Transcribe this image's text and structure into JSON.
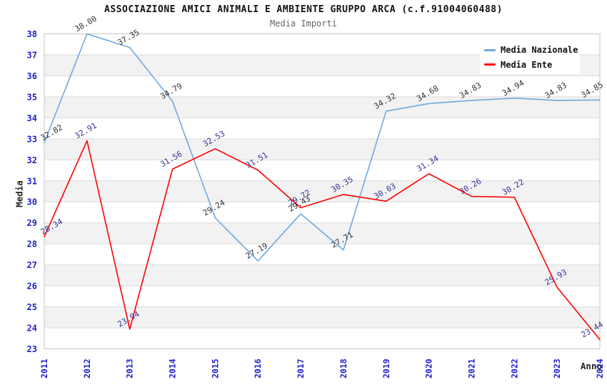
{
  "page": {
    "background": "#ffffff"
  },
  "chart_data": {
    "type": "line",
    "title": "ASSOCIAZIONE AMICI ANIMALI E AMBIENTE GRUPPO ARCA (c.f.91004060488)",
    "subtitle": "Media Importi",
    "xlabel": "Anno",
    "ylabel": "Media",
    "categories": [
      "2011",
      "2012",
      "2013",
      "2014",
      "2015",
      "2016",
      "2017",
      "2018",
      "2019",
      "2020",
      "2021",
      "2022",
      "2023",
      "2024"
    ],
    "series": [
      {
        "name": "Media Nazionale",
        "color": "#6FA8E0",
        "label_color": "#333333",
        "values": [
          32.82,
          38.0,
          37.35,
          34.79,
          29.24,
          27.19,
          29.43,
          27.71,
          34.32,
          34.68,
          34.83,
          34.94,
          34.83,
          34.85
        ]
      },
      {
        "name": "Media Ente",
        "color": "#FF0000",
        "label_color": "#333399",
        "values": [
          28.34,
          32.91,
          23.94,
          31.56,
          32.53,
          31.51,
          29.72,
          30.35,
          30.03,
          31.34,
          30.26,
          30.22,
          25.93,
          23.44
        ]
      }
    ],
    "ylim": [
      23,
      38
    ],
    "y_ticks": [
      23,
      24,
      25,
      26,
      27,
      28,
      29,
      30,
      31,
      32,
      33,
      34,
      35,
      36,
      37,
      38
    ],
    "grid": "horizontal-bands",
    "legend_position": "top-right",
    "data_label_rotation": -30,
    "colors": {
      "band": "#f2f2f2",
      "grid": "#dcdcdc",
      "border": "#c6c6c6",
      "tick_label": "#2121CC",
      "axis_title": "#222222",
      "title": "#111111",
      "subtitle": "#666666"
    }
  }
}
